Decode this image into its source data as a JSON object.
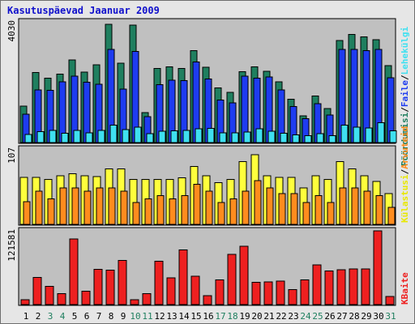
{
  "title": "Kasutuspäevad Jaanuar 2009",
  "colors": {
    "visits": "#1f7f5f",
    "pages": "#1e3cf0",
    "files": "#3fe0f0",
    "hits_yellow": "#ffff3c",
    "hits_orange": "#ff8c1e",
    "kbytes": "#ee2020",
    "weekend_label": "#1f7f5f",
    "legend_visits": "#1f7f5f",
    "legend_pages": "#1e3cf0",
    "legend_files": "#3fe0f0",
    "legend_hits": "#e8e800",
    "legend_visitors": "#ff8c1e",
    "legend_kbytes": "#ee2020"
  },
  "legend": {
    "top": [
      "Pöördumisi",
      "/",
      "Faile",
      "/",
      "Lehekülgi"
    ],
    "middle": [
      "Külastusi",
      "/",
      "Arvuteid"
    ],
    "bottom": [
      "KBaite"
    ]
  },
  "chart_data": [
    {
      "type": "bar",
      "panel": "top",
      "ytick": "4030",
      "ylim": [
        0,
        4030
      ],
      "categories": [
        "1",
        "2",
        "3",
        "4",
        "5",
        "6",
        "7",
        "8",
        "9",
        "10",
        "11",
        "12",
        "13",
        "14",
        "15",
        "16",
        "17",
        "18",
        "19",
        "20",
        "21",
        "22",
        "23",
        "24",
        "25",
        "26",
        "27",
        "28",
        "29",
        "30",
        "31"
      ],
      "series": [
        {
          "name": "Pöördumisi",
          "values": [
            1240,
            2390,
            2190,
            2330,
            2810,
            2400,
            2650,
            4030,
            2700,
            4000,
            1020,
            2530,
            2580,
            2530,
            3130,
            2570,
            1860,
            1710,
            2420,
            2580,
            2430,
            2070,
            1480,
            910,
            1590,
            1160,
            3480,
            3680,
            3600,
            3510,
            2620
          ]
        },
        {
          "name": "Lehekülgi",
          "values": [
            970,
            1800,
            1780,
            2070,
            2260,
            2060,
            1990,
            3180,
            1820,
            3100,
            890,
            1980,
            2130,
            2110,
            2740,
            2170,
            1450,
            1350,
            2270,
            2200,
            2230,
            1790,
            1230,
            820,
            1320,
            940,
            3170,
            3170,
            3130,
            3180,
            2210
          ]
        },
        {
          "name": "Faile",
          "values": [
            270,
            370,
            410,
            320,
            410,
            330,
            420,
            600,
            440,
            530,
            300,
            380,
            400,
            410,
            470,
            480,
            330,
            330,
            360,
            470,
            380,
            320,
            260,
            240,
            310,
            230,
            600,
            520,
            500,
            680,
            400
          ]
        }
      ]
    },
    {
      "type": "bar",
      "panel": "middle",
      "ytick": "107",
      "ylim": [
        0,
        107
      ],
      "categories": [
        "1",
        "2",
        "3",
        "4",
        "5",
        "6",
        "7",
        "8",
        "9",
        "10",
        "11",
        "12",
        "13",
        "14",
        "15",
        "16",
        "17",
        "18",
        "19",
        "20",
        "21",
        "22",
        "23",
        "24",
        "25",
        "26",
        "27",
        "28",
        "29",
        "30",
        "31"
      ],
      "series": [
        {
          "name": "Külastusi",
          "values": [
            67,
            67,
            64,
            69,
            72,
            69,
            68,
            79,
            79,
            64,
            64,
            64,
            64,
            66,
            82,
            69,
            59,
            64,
            89,
            99,
            69,
            67,
            67,
            52,
            69,
            64,
            89,
            79,
            69,
            61,
            44
          ]
        },
        {
          "name": "Arvuteid",
          "values": [
            32,
            47,
            36,
            52,
            52,
            47,
            52,
            52,
            47,
            31,
            36,
            41,
            36,
            41,
            57,
            47,
            31,
            36,
            47,
            62,
            52,
            44,
            44,
            31,
            41,
            31,
            52,
            52,
            47,
            41,
            24
          ]
        }
      ]
    },
    {
      "type": "bar",
      "panel": "bottom",
      "ytick": "121581",
      "ylim": [
        0,
        121581
      ],
      "categories": [
        "1",
        "2",
        "3",
        "4",
        "5",
        "6",
        "7",
        "8",
        "9",
        "10",
        "11",
        "12",
        "13",
        "14",
        "15",
        "16",
        "17",
        "18",
        "19",
        "20",
        "21",
        "22",
        "23",
        "24",
        "25",
        "26",
        "27",
        "28",
        "29",
        "30",
        "31"
      ],
      "series": [
        {
          "name": "KBaite",
          "values": [
            8000,
            44500,
            30000,
            18000,
            108000,
            22000,
            58000,
            56500,
            73000,
            8000,
            18000,
            71500,
            44000,
            90000,
            46500,
            15000,
            40500,
            83000,
            96000,
            37000,
            37500,
            39000,
            25000,
            40500,
            65500,
            55500,
            57500,
            59000,
            59000,
            121581,
            13500
          ]
        }
      ]
    }
  ],
  "x_labels": [
    {
      "text": "1",
      "weekend": false
    },
    {
      "text": "2",
      "weekend": false
    },
    {
      "text": "3",
      "weekend": true
    },
    {
      "text": "4",
      "weekend": true
    },
    {
      "text": "5",
      "weekend": false
    },
    {
      "text": "6",
      "weekend": false
    },
    {
      "text": "7",
      "weekend": false
    },
    {
      "text": "8",
      "weekend": false
    },
    {
      "text": "9",
      "weekend": false
    },
    {
      "text": "10",
      "weekend": true
    },
    {
      "text": "11",
      "weekend": true
    },
    {
      "text": "12",
      "weekend": false
    },
    {
      "text": "13",
      "weekend": false
    },
    {
      "text": "14",
      "weekend": false
    },
    {
      "text": "15",
      "weekend": false
    },
    {
      "text": "16",
      "weekend": false
    },
    {
      "text": "17",
      "weekend": true
    },
    {
      "text": "18",
      "weekend": true
    },
    {
      "text": "19",
      "weekend": false
    },
    {
      "text": "20",
      "weekend": false
    },
    {
      "text": "21",
      "weekend": false
    },
    {
      "text": "22",
      "weekend": false
    },
    {
      "text": "23",
      "weekend": false
    },
    {
      "text": "24",
      "weekend": true
    },
    {
      "text": "25",
      "weekend": true
    },
    {
      "text": "26",
      "weekend": false
    },
    {
      "text": "27",
      "weekend": false
    },
    {
      "text": "28",
      "weekend": false
    },
    {
      "text": "29",
      "weekend": false
    },
    {
      "text": "30",
      "weekend": false
    },
    {
      "text": "31",
      "weekend": true
    }
  ]
}
